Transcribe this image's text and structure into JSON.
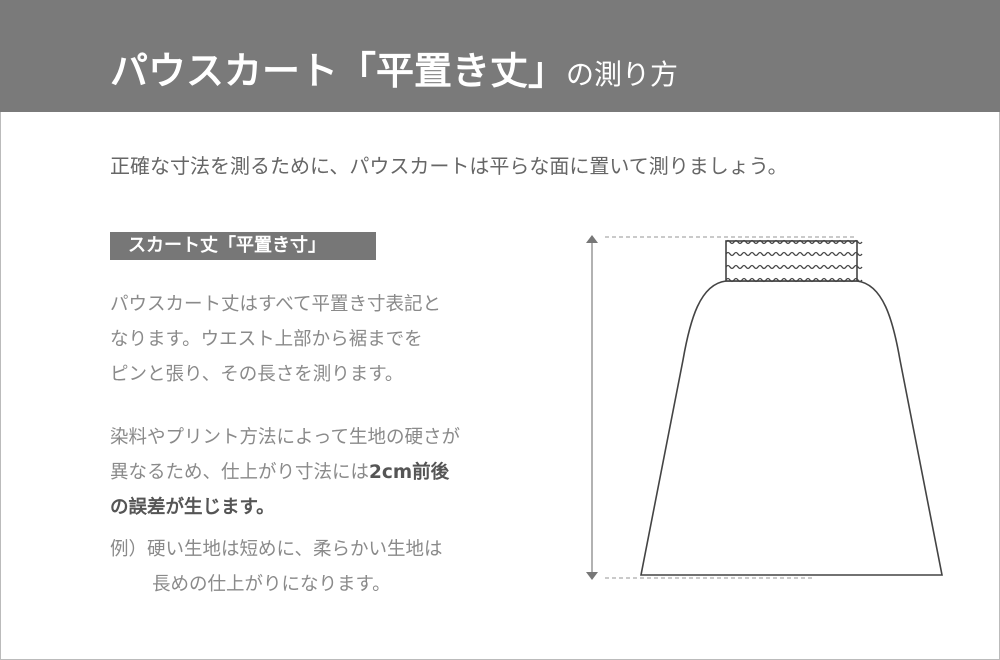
{
  "header": {
    "title_main": "パウスカート「平置き丈」",
    "title_suffix": "の測り方",
    "background": "#7a7a7a"
  },
  "intro": "正確な寸法を測るために、パウスカートは平らな面に置いて測りましょう。",
  "section_label": "スカート丈「平置き寸」",
  "paragraph1": [
    "パウスカート丈はすべて平置き寸表記と",
    "なります。ウエスト上部から裾までを",
    "ピンと張り、その長さを測ります。"
  ],
  "paragraph2": {
    "line1": "染料やプリント方法によって生地の硬さが",
    "line2_plain": "異なるため、仕上がり寸法には",
    "line2_bold": "2cm前後",
    "line3_bold": "の誤差が生じます。"
  },
  "example": {
    "line1": "例）硬い生地は短めに、柔らかい生地は",
    "line2": "長めの仕上がりになります。"
  },
  "diagram": {
    "subject": "skirt-icon",
    "measure": "length-arrow-icon"
  }
}
